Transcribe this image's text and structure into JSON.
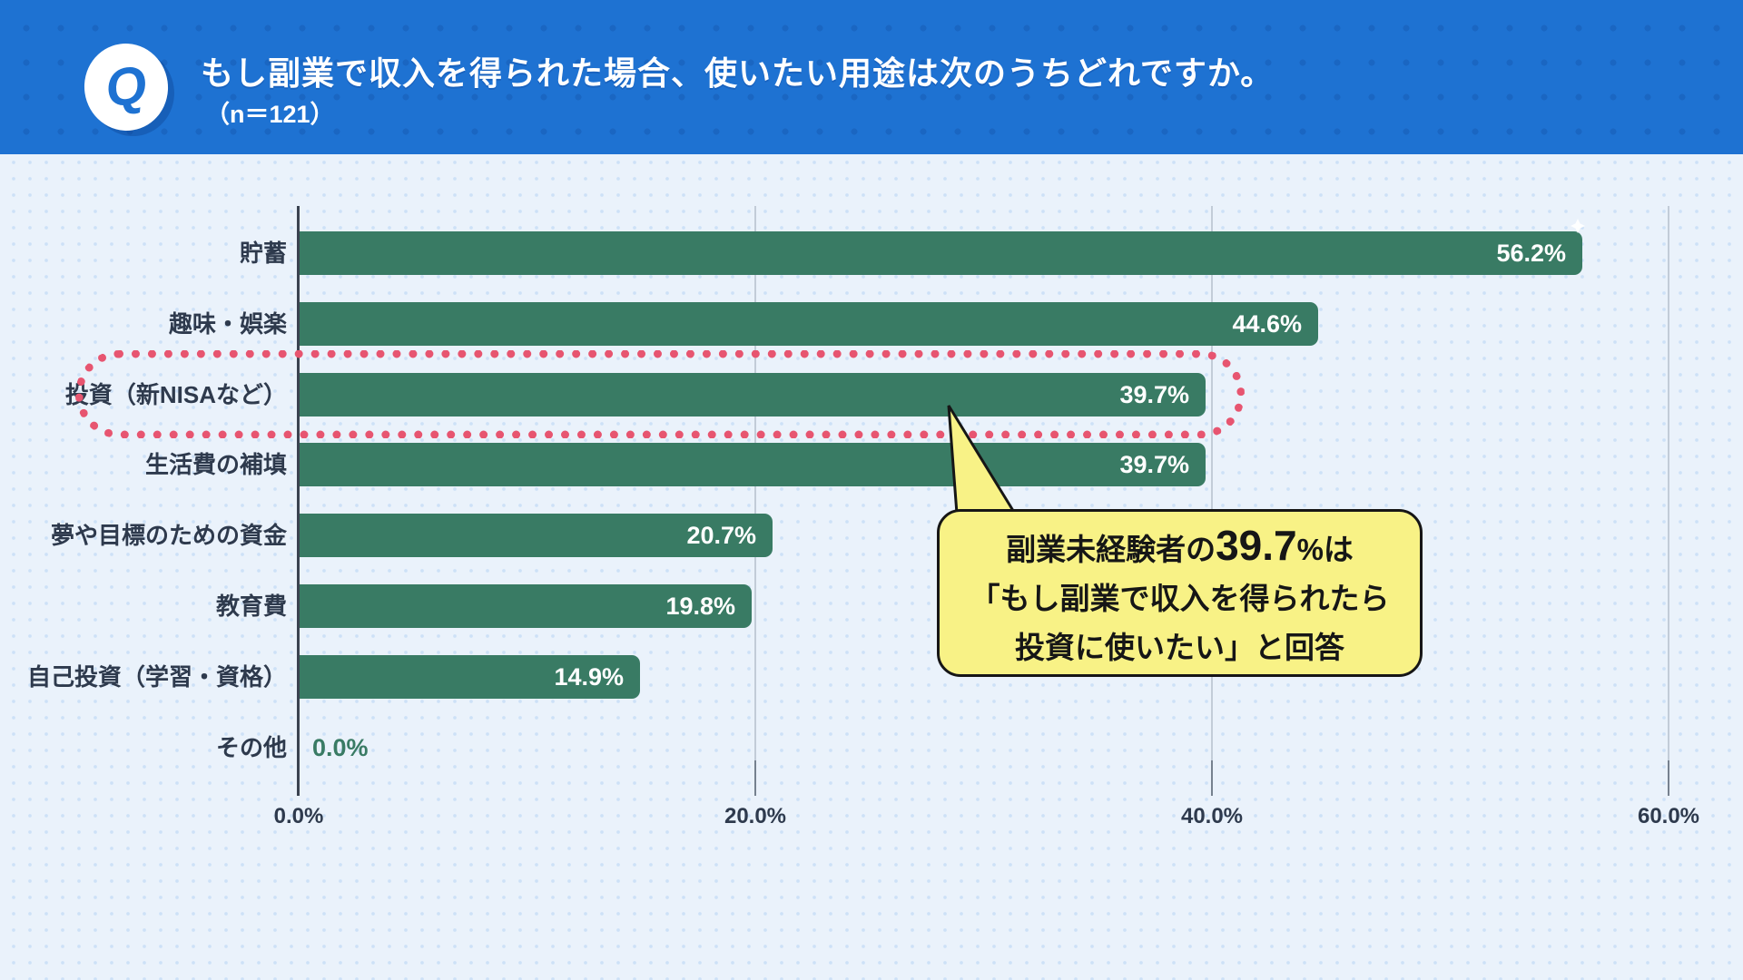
{
  "header": {
    "badge": "Q",
    "title": "もし副業で収入を得られた場合、使いたい用途は次のうちどれですか。",
    "sample": "（n＝121）"
  },
  "chart_data": {
    "type": "bar",
    "orientation": "horizontal",
    "title": "もし副業で収入を得られた場合、使いたい用途は次のうちどれですか。",
    "sample_size_label": "（n＝121）",
    "categories": [
      "貯蓄",
      "趣味・娯楽",
      "投資（新NISAなど）",
      "生活費の補填",
      "夢や目標のための資金",
      "教育費",
      "自己投資（学習・資格）",
      "その他"
    ],
    "values": [
      56.2,
      44.6,
      39.7,
      39.7,
      20.7,
      19.8,
      14.9,
      0.0
    ],
    "value_labels": [
      "56.2%",
      "44.6%",
      "39.7%",
      "39.7%",
      "20.7%",
      "19.8%",
      "14.9%",
      "0.0%"
    ],
    "x_tick_values": [
      0,
      20,
      40,
      60
    ],
    "x_tick_labels": [
      "0.0%",
      "20.0%",
      "40.0%",
      "60.0%"
    ],
    "xlim": [
      0,
      60
    ],
    "grid": "vertical-on",
    "legend": "none",
    "highlight": {
      "category": "投資（新NISAなど）",
      "index": 2,
      "style": "pink-dotted-outline"
    }
  },
  "callout": {
    "line1_prefix": "副業未経験者の",
    "value": "39.7",
    "line1_suffix": "%は",
    "line2": "「もし副業で収入を得られたら",
    "line3": "投資に使いたい」と回答"
  },
  "colors": {
    "header_blue": "#1e72d2",
    "background": "#eaf2fb",
    "bar_green": "#397b64",
    "label_dark": "#2e3a4d",
    "highlight_pink": "#e75570",
    "callout_yellow": "#f8f286",
    "value_text_white": "#ffffff"
  }
}
